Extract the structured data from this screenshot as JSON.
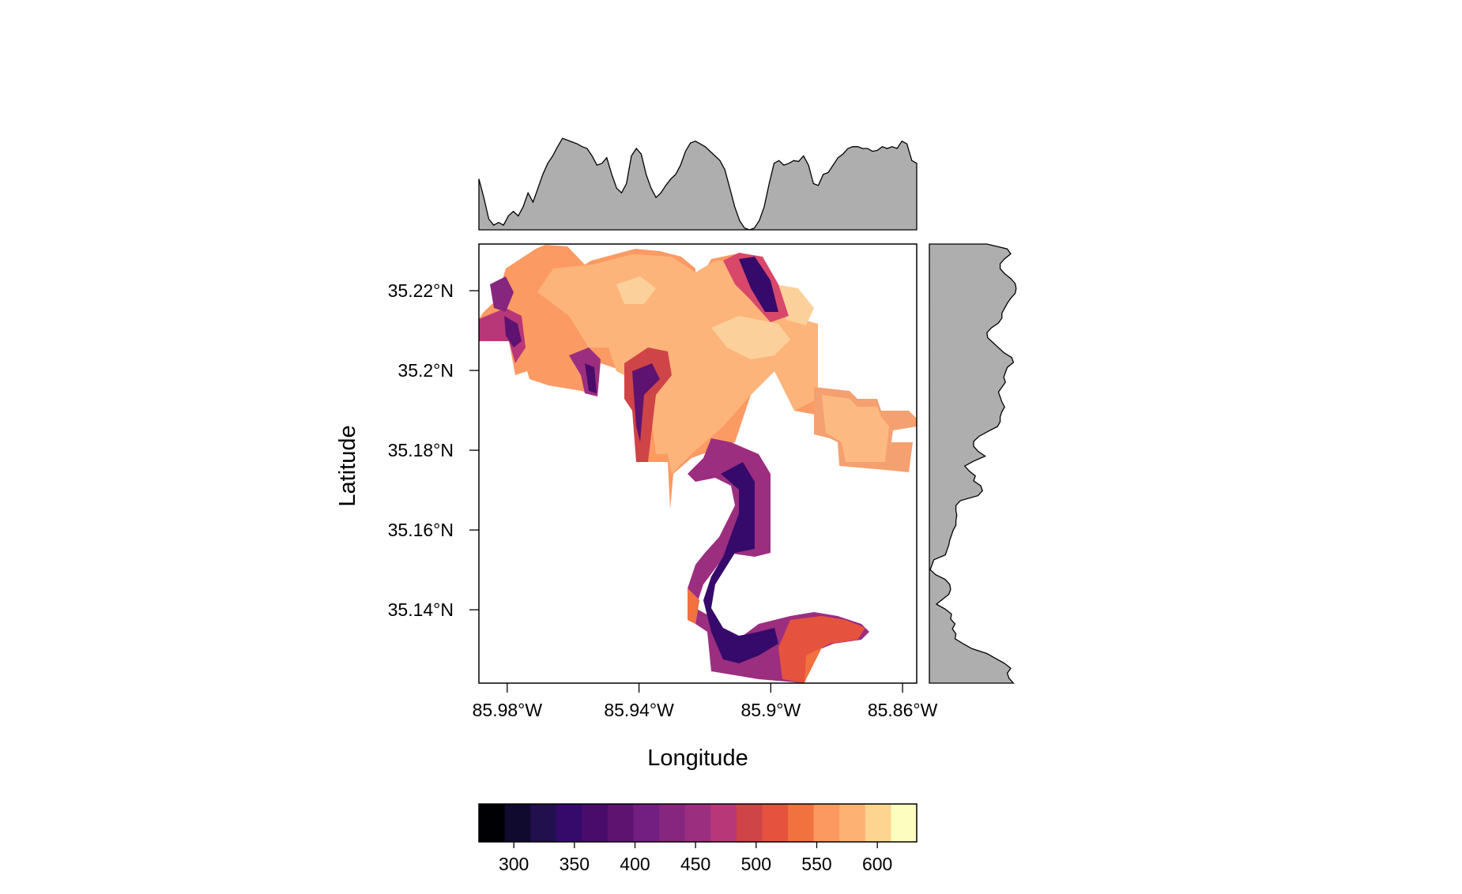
{
  "chart_data": {
    "type": "heatmap",
    "title": "",
    "xlabel": "Longitude",
    "ylabel": "Latitude",
    "x_ticks": [
      {
        "value": -85.98,
        "label": "85.98°W"
      },
      {
        "value": -85.94,
        "label": "85.94°W"
      },
      {
        "value": -85.9,
        "label": "85.9°W"
      },
      {
        "value": -85.86,
        "label": "85.86°W"
      }
    ],
    "y_ticks": [
      {
        "value": 35.22,
        "label": "35.22°N"
      },
      {
        "value": 35.2,
        "label": "35.2°N"
      },
      {
        "value": 35.18,
        "label": "35.18°N"
      },
      {
        "value": 35.16,
        "label": "35.16°N"
      },
      {
        "value": 35.14,
        "label": "35.14°N"
      }
    ],
    "xlim": [
      -85.9886,
      -85.8557
    ],
    "ylim": [
      35.1216,
      35.2317
    ],
    "colorbar": {
      "ticks": [
        300,
        350,
        400,
        450,
        500,
        550,
        600
      ],
      "range": [
        271.2,
        632.5
      ],
      "colors": [
        "#000004",
        "#110A2F",
        "#220F4D",
        "#360A6B",
        "#4A0C6B",
        "#5E1370",
        "#721F81",
        "#87267E",
        "#9C2E7F",
        "#B83779",
        "#CF4446",
        "#E5533F",
        "#F1713F",
        "#FB9961",
        "#FDB274",
        "#FDD490",
        "#FCFDBF"
      ]
    },
    "marginal_profiles": {
      "columns_mean": [
        0.55,
        0.35,
        0.12,
        0.05,
        0.08,
        0.05,
        0.15,
        0.2,
        0.15,
        0.25,
        0.4,
        0.3,
        0.45,
        0.6,
        0.72,
        0.8,
        0.9,
        0.99,
        0.97,
        0.95,
        0.93,
        0.9,
        0.88,
        0.8,
        0.7,
        0.72,
        0.78,
        0.6,
        0.45,
        0.4,
        0.5,
        0.8,
        0.88,
        0.82,
        0.6,
        0.45,
        0.35,
        0.4,
        0.48,
        0.55,
        0.6,
        0.7,
        0.85,
        0.94,
        0.96,
        0.93,
        0.9,
        0.85,
        0.8,
        0.75,
        0.65,
        0.45,
        0.25,
        0.1,
        0.02,
        0.0,
        0.02,
        0.1,
        0.25,
        0.5,
        0.72,
        0.75,
        0.7,
        0.72,
        0.75,
        0.74,
        0.8,
        0.7,
        0.5,
        0.48,
        0.6,
        0.62,
        0.7,
        0.78,
        0.82,
        0.88,
        0.9,
        0.9,
        0.88,
        0.88,
        0.85,
        0.86,
        0.9,
        0.88,
        0.9,
        0.88,
        0.96,
        0.93,
        0.75,
        0.72
      ],
      "rows_mean": [
        0.65,
        0.88,
        0.92,
        0.85,
        0.8,
        0.8,
        0.85,
        0.92,
        0.97,
        0.98,
        0.97,
        0.92,
        0.88,
        0.85,
        0.82,
        0.82,
        0.78,
        0.7,
        0.65,
        0.66,
        0.72,
        0.78,
        0.84,
        0.93,
        0.95,
        0.88,
        0.86,
        0.84,
        0.86,
        0.82,
        0.78,
        0.8,
        0.82,
        0.85,
        0.82,
        0.8,
        0.8,
        0.77,
        0.66,
        0.56,
        0.5,
        0.5,
        0.55,
        0.63,
        0.5,
        0.4,
        0.45,
        0.52,
        0.5,
        0.58,
        0.6,
        0.55,
        0.35,
        0.3,
        0.3,
        0.31,
        0.3,
        0.3,
        0.27,
        0.25,
        0.23,
        0.22,
        0.2,
        0.18,
        0.05,
        0.03,
        0.01,
        0.07,
        0.18,
        0.23,
        0.24,
        0.22,
        0.15,
        0.08,
        0.18,
        0.25,
        0.24,
        0.29,
        0.26,
        0.3,
        0.29,
        0.38,
        0.48,
        0.65,
        0.75,
        0.85,
        0.92,
        0.88,
        0.9,
        0.95
      ]
    }
  }
}
